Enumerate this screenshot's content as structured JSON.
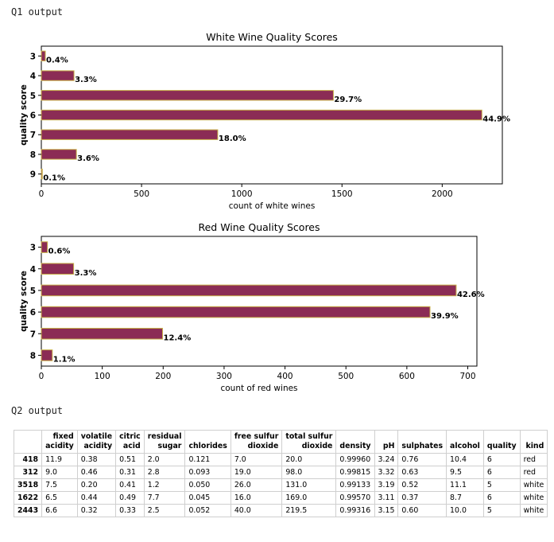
{
  "sections": {
    "q1_label": "Q1 output",
    "q2_label": "Q2 output"
  },
  "colors": {
    "bar_fill": "#8b2c55",
    "bar_edge": "#c8b048"
  },
  "chart_data": [
    {
      "type": "bar",
      "orientation": "horizontal",
      "title": "White Wine Quality Scores",
      "xlabel": "count of white wines",
      "ylabel": "quality score",
      "categories": [
        "3",
        "4",
        "5",
        "6",
        "7",
        "8",
        "9"
      ],
      "values": [
        20,
        163,
        1457,
        2198,
        880,
        175,
        5
      ],
      "labels": [
        "0.4%",
        "3.3%",
        "29.7%",
        "44.9%",
        "18.0%",
        "3.6%",
        "0.1%"
      ],
      "xlim": [
        0,
        2300
      ],
      "xticks": [
        "0",
        "500",
        "1000",
        "1500",
        "2000"
      ],
      "grid": false
    },
    {
      "type": "bar",
      "orientation": "horizontal",
      "title": "Red Wine Quality Scores",
      "xlabel": "count of red wines",
      "ylabel": "quality score",
      "categories": [
        "3",
        "4",
        "5",
        "6",
        "7",
        "8"
      ],
      "values": [
        10,
        53,
        681,
        638,
        199,
        18
      ],
      "labels": [
        "0.6%",
        "3.3%",
        "42.6%",
        "39.9%",
        "12.4%",
        "1.1%"
      ],
      "xlim": [
        0,
        715
      ],
      "xticks": [
        "0",
        "100",
        "200",
        "300",
        "400",
        "500",
        "600",
        "700"
      ],
      "grid": false
    }
  ],
  "table": {
    "columns": [
      [
        "fixed",
        "acidity"
      ],
      [
        "volatile",
        "acidity"
      ],
      [
        "citric",
        "acid"
      ],
      [
        "residual",
        "sugar"
      ],
      [
        "",
        "chlorides"
      ],
      [
        "free sulfur",
        "dioxide"
      ],
      [
        "total sulfur",
        "dioxide"
      ],
      [
        "",
        "density"
      ],
      [
        "",
        "pH"
      ],
      [
        "",
        "sulphates"
      ],
      [
        "",
        "alcohol"
      ],
      [
        "",
        "quality"
      ],
      [
        "",
        "kind"
      ]
    ],
    "rows": [
      {
        "index": "418",
        "cells": [
          "11.9",
          "0.38",
          "0.51",
          "2.0",
          "0.121",
          "7.0",
          "20.0",
          "0.99960",
          "3.24",
          "0.76",
          "10.4",
          "6",
          "red"
        ]
      },
      {
        "index": "312",
        "cells": [
          "9.0",
          "0.46",
          "0.31",
          "2.8",
          "0.093",
          "19.0",
          "98.0",
          "0.99815",
          "3.32",
          "0.63",
          "9.5",
          "6",
          "red"
        ]
      },
      {
        "index": "3518",
        "cells": [
          "7.5",
          "0.20",
          "0.41",
          "1.2",
          "0.050",
          "26.0",
          "131.0",
          "0.99133",
          "3.19",
          "0.52",
          "11.1",
          "5",
          "white"
        ]
      },
      {
        "index": "1622",
        "cells": [
          "6.5",
          "0.44",
          "0.49",
          "7.7",
          "0.045",
          "16.0",
          "169.0",
          "0.99570",
          "3.11",
          "0.37",
          "8.7",
          "6",
          "white"
        ]
      },
      {
        "index": "2443",
        "cells": [
          "6.6",
          "0.32",
          "0.33",
          "2.5",
          "0.052",
          "40.0",
          "219.5",
          "0.99316",
          "3.15",
          "0.60",
          "10.0",
          "5",
          "white"
        ]
      }
    ]
  }
}
